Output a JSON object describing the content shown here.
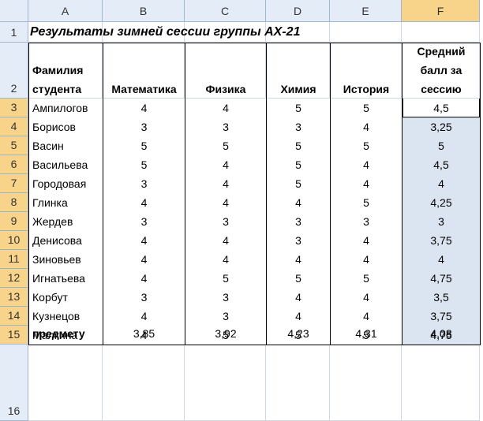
{
  "column_headers": [
    "A",
    "B",
    "C",
    "D",
    "E",
    "F"
  ],
  "row_numbers": [
    "1",
    "2",
    "3",
    "4",
    "5",
    "6",
    "7",
    "8",
    "9",
    "10",
    "11",
    "12",
    "13",
    "14",
    "15",
    "16"
  ],
  "title": "Результаты зимней сессии группы АХ-21",
  "table": {
    "header": [
      "Фамилия студента",
      "Математика",
      "Физика",
      "Химия",
      "История",
      "Средний балл за сессию"
    ],
    "rows": [
      [
        "Ампилогов",
        "4",
        "4",
        "5",
        "5",
        "4,5"
      ],
      [
        "Борисов",
        "3",
        "3",
        "3",
        "4",
        "3,25"
      ],
      [
        "Васин",
        "5",
        "5",
        "5",
        "5",
        "5"
      ],
      [
        "Васильева",
        "5",
        "4",
        "5",
        "4",
        "4,5"
      ],
      [
        "Городовая",
        "3",
        "4",
        "5",
        "4",
        "4"
      ],
      [
        "Глинка",
        "4",
        "4",
        "4",
        "5",
        "4,25"
      ],
      [
        "Жердев",
        "3",
        "3",
        "3",
        "3",
        "3"
      ],
      [
        "Денисова",
        "4",
        "4",
        "3",
        "4",
        "3,75"
      ],
      [
        "Зиновьев",
        "4",
        "4",
        "4",
        "4",
        "4"
      ],
      [
        "Игнатьева",
        "4",
        "5",
        "5",
        "5",
        "4,75"
      ],
      [
        "Корбут",
        "3",
        "3",
        "4",
        "4",
        "3,5"
      ],
      [
        "Кузнецов",
        "4",
        "3",
        "4",
        "4",
        "3,75"
      ],
      [
        "Малкина",
        "4",
        "5",
        "5",
        "5",
        "4,75"
      ]
    ],
    "footer": [
      "Средний балл группы по предмету",
      "3,85",
      "3,92",
      "4,23",
      "4,31",
      "4,08"
    ]
  }
}
